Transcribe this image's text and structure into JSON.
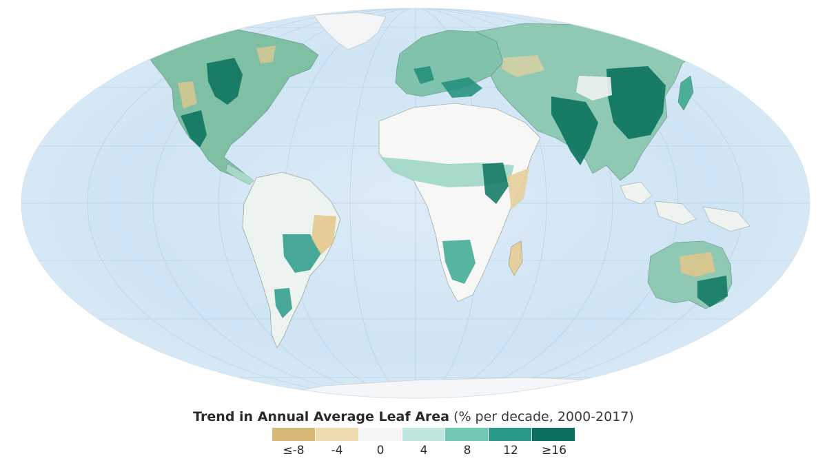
{
  "legend": {
    "title_bold": "Trend in Annual Average Leaf Area",
    "title_units": "(% per decade, 2000-2017)",
    "swatches": [
      {
        "label": "≤-8",
        "value": -8,
        "color": "#d8b676"
      },
      {
        "label": "-4",
        "value": -4,
        "color": "#efdcae"
      },
      {
        "label": "0",
        "value": 0,
        "color": "#f5f5f3"
      },
      {
        "label": "4",
        "value": 4,
        "color": "#bfe6df"
      },
      {
        "label": "8",
        "value": 8,
        "color": "#72c7b2"
      },
      {
        "label": "12",
        "value": 12,
        "color": "#2a9a88"
      },
      {
        "label": "≥16",
        "value": 16,
        "color": "#0a6f5c"
      }
    ]
  },
  "colors": {
    "ocean": "#c8e2f3",
    "ocean_light": "#e4f1fa",
    "graticule": "#a9c9de",
    "ice": "#f4f6f7",
    "desert": "#f7f7f5"
  }
}
